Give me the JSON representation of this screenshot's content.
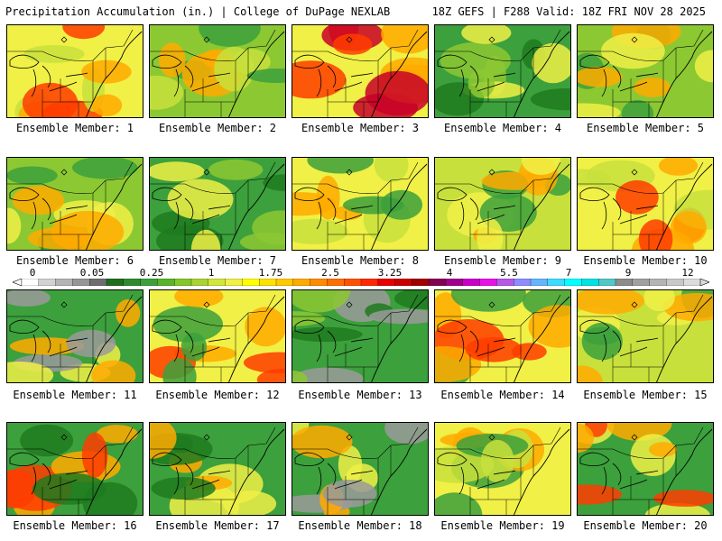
{
  "header": {
    "title_left": "Precipitation Accumulation (in.) | College of DuPage NEXLAB",
    "title_right": "18Z GEFS | F288 Valid: 18Z FRI NOV 28 2025"
  },
  "legend": {
    "ticks": [
      "0",
      "0.05",
      "0.25",
      "1",
      "1.75",
      "2.5",
      "3.25",
      "4",
      "5.5",
      "7",
      "9",
      "12"
    ],
    "colors": [
      "#ffffff",
      "#d2d2d2",
      "#b4b4b4",
      "#969696",
      "#6e6e6e",
      "#1e6e1e",
      "#2f8a2f",
      "#3ca03c",
      "#5ab428",
      "#82c828",
      "#aad232",
      "#d2e63c",
      "#f0f046",
      "#ffff00",
      "#ffe100",
      "#ffc800",
      "#ffaa00",
      "#ff8c00",
      "#ff6e00",
      "#ff5000",
      "#ff2800",
      "#e60000",
      "#c80000",
      "#a00000",
      "#820050",
      "#a0008c",
      "#c800c8",
      "#e614e6",
      "#b45ae6",
      "#8c8cff",
      "#64b4ff",
      "#3cdcff",
      "#00ffff",
      "#00e1e1",
      "#50c8c8",
      "#8c8c8c",
      "#a0a0a0",
      "#b4b4b4",
      "#c8c8c8",
      "#dcdcdc"
    ]
  },
  "panels": [
    {
      "label": "Ensemble Member: 1"
    },
    {
      "label": "Ensemble Member: 2"
    },
    {
      "label": "Ensemble Member: 3"
    },
    {
      "label": "Ensemble Member: 4"
    },
    {
      "label": "Ensemble Member: 5"
    },
    {
      "label": "Ensemble Member: 6"
    },
    {
      "label": "Ensemble Member: 7"
    },
    {
      "label": "Ensemble Member: 8"
    },
    {
      "label": "Ensemble Member: 9"
    },
    {
      "label": "Ensemble Member: 10"
    },
    {
      "label": "Ensemble Member: 11"
    },
    {
      "label": "Ensemble Member: 12"
    },
    {
      "label": "Ensemble Member: 13"
    },
    {
      "label": "Ensemble Member: 14"
    },
    {
      "label": "Ensemble Member: 15"
    },
    {
      "label": "Ensemble Member: 16"
    },
    {
      "label": "Ensemble Member: 17"
    },
    {
      "label": "Ensemble Member: 18"
    },
    {
      "label": "Ensemble Member: 19"
    },
    {
      "label": "Ensemble Member: 20"
    }
  ],
  "palette": {
    "dark_green": "#1e7a1e",
    "green": "#3ca03c",
    "light_green": "#8cc832",
    "yellow_green": "#c8e03c",
    "yellow": "#f0f046",
    "orange": "#ffaa00",
    "red": "#ff3c00",
    "dark_red": "#c80028",
    "gray": "#9a9a9a"
  }
}
